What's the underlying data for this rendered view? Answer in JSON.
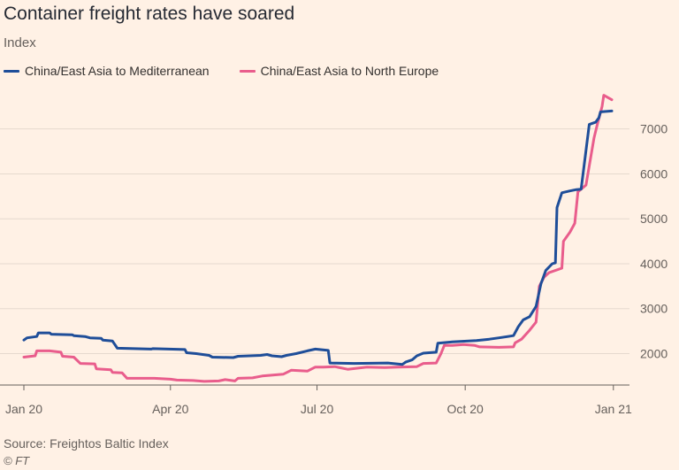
{
  "chart_data": {
    "type": "line",
    "title": "Container freight rates have soared",
    "subtitle": "Index",
    "ylim": [
      1300,
      7900
    ],
    "yticks": [
      2000,
      3000,
      4000,
      5000,
      6000,
      7000
    ],
    "xticks": [
      {
        "label": "Jan 20",
        "date": "2020-01-01"
      },
      {
        "label": "Apr 20",
        "date": "2020-04-01"
      },
      {
        "label": "Jul 20",
        "date": "2020-07-01"
      },
      {
        "label": "Oct 20",
        "date": "2020-10-01"
      },
      {
        "label": "Jan 21",
        "date": "2021-01-01"
      }
    ],
    "xlim": [
      "2020-01-01",
      "2021-01-11"
    ],
    "grid": "horizontal",
    "legend": "top-left",
    "series": [
      {
        "name": "China/East Asia to Mediterranean",
        "color": "#1f4e99",
        "points": [
          [
            "2020-01-01",
            2300
          ],
          [
            "2020-01-03",
            2350
          ],
          [
            "2020-01-09",
            2380
          ],
          [
            "2020-01-10",
            2460
          ],
          [
            "2020-01-17",
            2460
          ],
          [
            "2020-01-18",
            2430
          ],
          [
            "2020-01-31",
            2420
          ],
          [
            "2020-02-01",
            2400
          ],
          [
            "2020-02-08",
            2380
          ],
          [
            "2020-02-11",
            2350
          ],
          [
            "2020-02-18",
            2340
          ],
          [
            "2020-02-19",
            2300
          ],
          [
            "2020-02-25",
            2280
          ],
          [
            "2020-02-28",
            2120
          ],
          [
            "2020-03-20",
            2100
          ],
          [
            "2020-03-21",
            2110
          ],
          [
            "2020-03-31",
            2100
          ],
          [
            "2020-04-10",
            2090
          ],
          [
            "2020-04-11",
            2020
          ],
          [
            "2020-04-17",
            2000
          ],
          [
            "2020-04-25",
            1960
          ],
          [
            "2020-04-27",
            1920
          ],
          [
            "2020-05-10",
            1910
          ],
          [
            "2020-05-13",
            1940
          ],
          [
            "2020-05-27",
            1960
          ],
          [
            "2020-05-31",
            1980
          ],
          [
            "2020-06-03",
            1950
          ],
          [
            "2020-06-09",
            1930
          ],
          [
            "2020-06-12",
            1960
          ],
          [
            "2020-06-18",
            2000
          ],
          [
            "2020-06-25",
            2060
          ],
          [
            "2020-06-30",
            2100
          ],
          [
            "2020-07-08",
            2070
          ],
          [
            "2020-07-09",
            1790
          ],
          [
            "2020-07-24",
            1780
          ],
          [
            "2020-08-14",
            1790
          ],
          [
            "2020-08-23",
            1760
          ],
          [
            "2020-08-25",
            1810
          ],
          [
            "2020-08-29",
            1860
          ],
          [
            "2020-09-01",
            1950
          ],
          [
            "2020-09-05",
            2010
          ],
          [
            "2020-09-13",
            2030
          ],
          [
            "2020-09-14",
            2230
          ],
          [
            "2020-09-23",
            2260
          ],
          [
            "2020-10-08",
            2290
          ],
          [
            "2020-10-16",
            2320
          ],
          [
            "2020-10-22",
            2350
          ],
          [
            "2020-10-31",
            2400
          ],
          [
            "2020-11-03",
            2600
          ],
          [
            "2020-11-06",
            2750
          ],
          [
            "2020-11-10",
            2820
          ],
          [
            "2020-11-14",
            3050
          ],
          [
            "2020-11-17",
            3550
          ],
          [
            "2020-11-20",
            3850
          ],
          [
            "2020-11-24",
            4000
          ],
          [
            "2020-11-26",
            4020
          ],
          [
            "2020-11-27",
            5250
          ],
          [
            "2020-11-30",
            5580
          ],
          [
            "2020-12-05",
            5620
          ],
          [
            "2020-12-09",
            5650
          ],
          [
            "2020-12-12",
            5660
          ],
          [
            "2020-12-17",
            7100
          ],
          [
            "2020-12-21",
            7150
          ],
          [
            "2020-12-23",
            7250
          ],
          [
            "2020-12-24",
            7380
          ],
          [
            "2020-12-31",
            7400
          ]
        ]
      },
      {
        "name": "China/East Asia to North Europe",
        "color": "#e95d8c",
        "points": [
          [
            "2020-01-01",
            1920
          ],
          [
            "2020-01-08",
            1950
          ],
          [
            "2020-01-09",
            2060
          ],
          [
            "2020-01-17",
            2060
          ],
          [
            "2020-01-24",
            2030
          ],
          [
            "2020-01-25",
            1940
          ],
          [
            "2020-02-01",
            1920
          ],
          [
            "2020-02-05",
            1780
          ],
          [
            "2020-02-14",
            1770
          ],
          [
            "2020-02-15",
            1660
          ],
          [
            "2020-02-24",
            1640
          ],
          [
            "2020-02-25",
            1580
          ],
          [
            "2020-03-02",
            1570
          ],
          [
            "2020-03-05",
            1450
          ],
          [
            "2020-03-22",
            1450
          ],
          [
            "2020-04-01",
            1430
          ],
          [
            "2020-04-05",
            1410
          ],
          [
            "2020-04-15",
            1400
          ],
          [
            "2020-04-22",
            1380
          ],
          [
            "2020-05-01",
            1390
          ],
          [
            "2020-05-05",
            1420
          ],
          [
            "2020-05-11",
            1390
          ],
          [
            "2020-05-13",
            1450
          ],
          [
            "2020-05-22",
            1460
          ],
          [
            "2020-05-28",
            1500
          ],
          [
            "2020-06-10",
            1540
          ],
          [
            "2020-06-15",
            1630
          ],
          [
            "2020-06-25",
            1610
          ],
          [
            "2020-06-30",
            1700
          ],
          [
            "2020-07-05",
            1700
          ],
          [
            "2020-07-12",
            1710
          ],
          [
            "2020-07-20",
            1650
          ],
          [
            "2020-08-01",
            1700
          ],
          [
            "2020-08-12",
            1690
          ],
          [
            "2020-08-20",
            1700
          ],
          [
            "2020-09-01",
            1710
          ],
          [
            "2020-09-05",
            1780
          ],
          [
            "2020-09-13",
            1790
          ],
          [
            "2020-09-16",
            2000
          ],
          [
            "2020-09-18",
            2180
          ],
          [
            "2020-09-23",
            2180
          ],
          [
            "2020-09-30",
            2200
          ],
          [
            "2020-10-07",
            2180
          ],
          [
            "2020-10-10",
            2150
          ],
          [
            "2020-10-22",
            2140
          ],
          [
            "2020-10-31",
            2150
          ],
          [
            "2020-11-01",
            2240
          ],
          [
            "2020-11-05",
            2320
          ],
          [
            "2020-11-10",
            2520
          ],
          [
            "2020-11-14",
            2700
          ],
          [
            "2020-11-16",
            3500
          ],
          [
            "2020-11-19",
            3700
          ],
          [
            "2020-11-22",
            3800
          ],
          [
            "2020-11-30",
            3900
          ],
          [
            "2020-12-01",
            4500
          ],
          [
            "2020-12-05",
            4700
          ],
          [
            "2020-12-08",
            4900
          ],
          [
            "2020-12-10",
            5600
          ],
          [
            "2020-12-15",
            5750
          ],
          [
            "2020-12-20",
            6800
          ],
          [
            "2020-12-22",
            7100
          ],
          [
            "2020-12-25",
            7500
          ],
          [
            "2020-12-26",
            7750
          ],
          [
            "2020-12-31",
            7650
          ]
        ]
      }
    ]
  },
  "source_text": "Source: Freightos Baltic Index",
  "copyright_text": "© FT"
}
